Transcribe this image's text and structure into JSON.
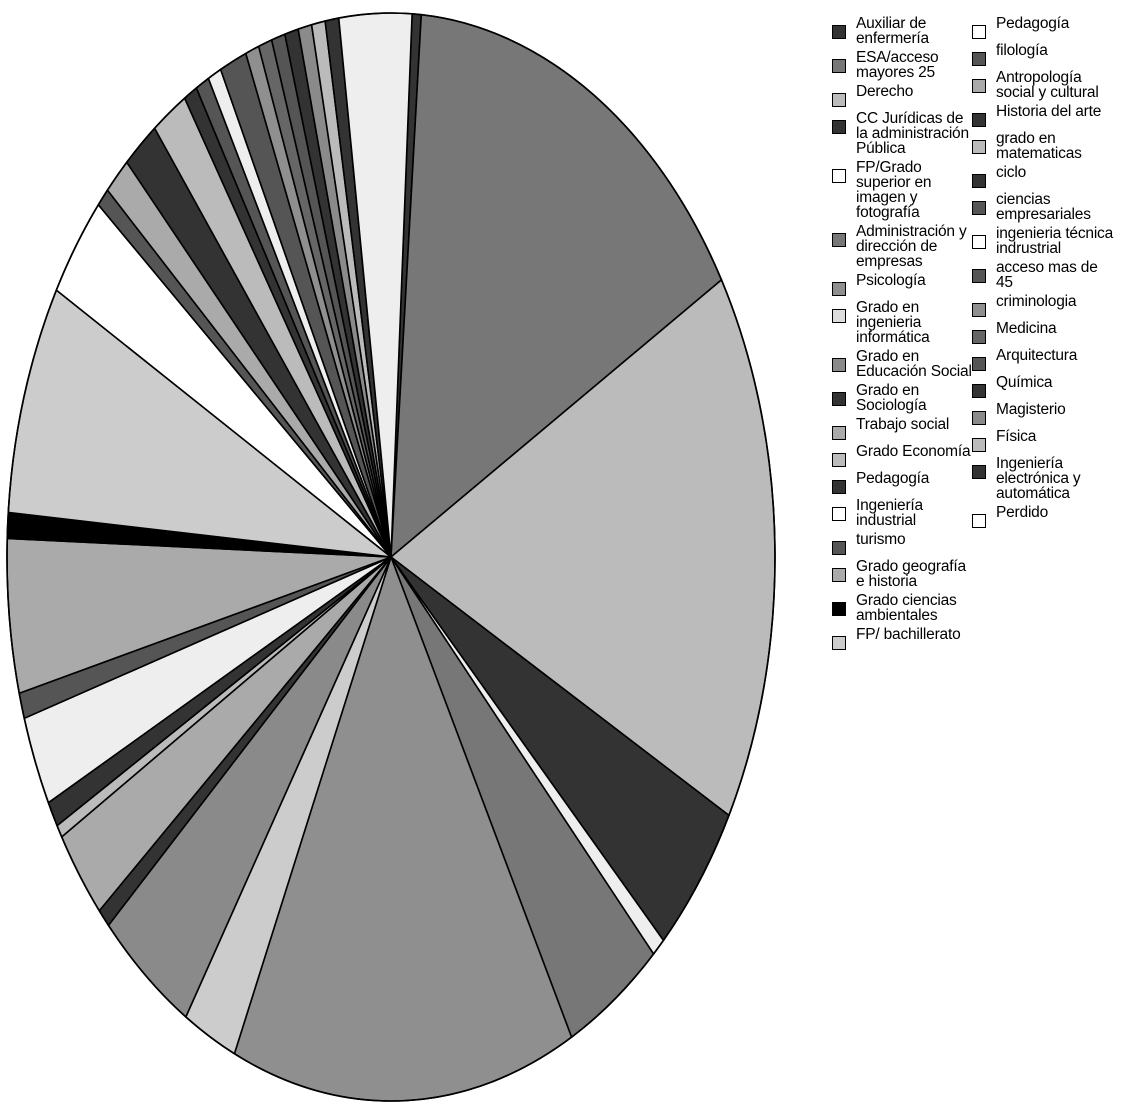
{
  "chart_data": {
    "type": "pie",
    "title": "",
    "legend_position": "right",
    "slices": [
      {
        "label": "Auxiliar de enfermería",
        "value": 1,
        "color": "#333333"
      },
      {
        "label": "ESA/acceso mayores 25",
        "value": 40,
        "color": "#777777"
      },
      {
        "label": "Derecho",
        "value": 43,
        "color": "#bbbbbb"
      },
      {
        "label": "CC Jurídicas de la administración Pública",
        "value": 12,
        "color": "#333333"
      },
      {
        "label": "FP/Grado superior en imagen y fotografía",
        "value": 1.5,
        "color": "#eeeeee"
      },
      {
        "label": "Administración y dirección de empresas",
        "value": 11,
        "color": "#777777"
      },
      {
        "label": "Psicología",
        "value": 38,
        "color": "#8f8f8f"
      },
      {
        "label": "Grado en ingenieria informática",
        "value": 6,
        "color": "#cccccc"
      },
      {
        "label": "Grado en Educación Social",
        "value": 11,
        "color": "#8a8a8a"
      },
      {
        "label": "Grado en Sociología",
        "value": 1.5,
        "color": "#333333"
      },
      {
        "label": "Trabajo social",
        "value": 7,
        "color": "#aaaaaa"
      },
      {
        "label": "Grado Economía",
        "value": 1,
        "color": "#bbbbbb"
      },
      {
        "label": "Pedagogía",
        "value": 2,
        "color": "#333333"
      },
      {
        "label": "Ingeniería industrial",
        "value": 7,
        "color": "#eeeeee"
      },
      {
        "label": "turismo",
        "value": 2,
        "color": "#555555"
      },
      {
        "label": "Grado geografía e historia",
        "value": 12,
        "color": "#aaaaaa"
      },
      {
        "label": "Grado ciencias ambientales",
        "value": 2,
        "color": "#000000"
      },
      {
        "label": "FP/ bachillerato",
        "value": 18,
        "color": "#cccccc"
      },
      {
        "label": "Pedagogía",
        "value": 8,
        "color": "#ffffff"
      },
      {
        "label": "filología",
        "value": 1.5,
        "color": "#555555"
      },
      {
        "label": "Antropología social y cultural",
        "value": 3,
        "color": "#aaaaaa"
      },
      {
        "label": "Historia del arte",
        "value": 4,
        "color": "#333333"
      },
      {
        "label": "grado en matematicas",
        "value": 4,
        "color": "#bbbbbb"
      },
      {
        "label": "ciclo",
        "value": 1.5,
        "color": "#333333"
      },
      {
        "label": "ciencias empresariales",
        "value": 1.5,
        "color": "#555555"
      },
      {
        "label": "ingenieria técnica indrustrial",
        "value": 1.5,
        "color": "#eeeeee"
      },
      {
        "label": "acceso mas de 45",
        "value": 3,
        "color": "#555555"
      },
      {
        "label": "criminologia",
        "value": 1.5,
        "color": "#8f8f8f"
      },
      {
        "label": "Medicina",
        "value": 1.5,
        "color": "#666666"
      },
      {
        "label": "Arquitectura",
        "value": 1.5,
        "color": "#555555"
      },
      {
        "label": "Química",
        "value": 1.5,
        "color": "#333333"
      },
      {
        "label": "Magisterio",
        "value": 1.5,
        "color": "#8a8a8a"
      },
      {
        "label": "Física",
        "value": 1.5,
        "color": "#bbbbbb"
      },
      {
        "label": "Ingeniería electrónica y automática",
        "value": 1.5,
        "color": "#333333"
      },
      {
        "label": "Perdido",
        "value": 8,
        "color": "#eeeeee"
      }
    ]
  },
  "legend": {
    "column1": [
      {
        "text": "Auxiliar de\nenfermería",
        "color": "#333333"
      },
      {
        "text": "ESA/acceso\nmayores 25",
        "color": "#777777"
      },
      {
        "text": "Derecho",
        "color": "#bbbbbb"
      },
      {
        "text": "CC Jurídicas de\nla administración\nPública",
        "color": "#333333"
      },
      {
        "text": "FP/Grado\nsuperior en\nimagen y\nfotografía",
        "color": "#ffffff"
      },
      {
        "text": "Administración y\ndirección de\nempresas",
        "color": "#777777"
      },
      {
        "text": "Psicología",
        "color": "#8f8f8f"
      },
      {
        "text": "Grado en\ningenieria\ninformática",
        "color": "#dddddd"
      },
      {
        "text": "Grado en\nEducación Social",
        "color": "#8a8a8a"
      },
      {
        "text": "Grado en\nSociología",
        "color": "#333333"
      },
      {
        "text": "Trabajo social",
        "color": "#aaaaaa"
      },
      {
        "text": "Grado Economía",
        "color": "#bbbbbb"
      },
      {
        "text": "Pedagogía",
        "color": "#333333"
      },
      {
        "text": "Ingeniería\nindustrial",
        "color": "#ffffff"
      },
      {
        "text": "turismo",
        "color": "#555555"
      },
      {
        "text": "Grado geografía\ne historia",
        "color": "#aaaaaa"
      },
      {
        "text": "Grado ciencias\nambientales",
        "color": "#000000"
      },
      {
        "text": "FP/ bachillerato",
        "color": "#cccccc"
      }
    ],
    "column2": [
      {
        "text": "Pedagogía",
        "color": "#ffffff"
      },
      {
        "text": "filología",
        "color": "#555555"
      },
      {
        "text": "Antropología\nsocial y cultural",
        "color": "#aaaaaa"
      },
      {
        "text": "Historia del arte",
        "color": "#333333"
      },
      {
        "text": "grado en\nmatematicas",
        "color": "#bbbbbb"
      },
      {
        "text": "ciclo",
        "color": "#333333"
      },
      {
        "text": "ciencias\nempresariales",
        "color": "#555555"
      },
      {
        "text": "ingenieria técnica\nindrustrial",
        "color": "#ffffff"
      },
      {
        "text": "acceso mas de\n45",
        "color": "#555555"
      },
      {
        "text": "criminologia",
        "color": "#8f8f8f"
      },
      {
        "text": "Medicina",
        "color": "#666666"
      },
      {
        "text": "Arquitectura",
        "color": "#555555"
      },
      {
        "text": "Química",
        "color": "#333333"
      },
      {
        "text": "Magisterio",
        "color": "#8a8a8a"
      },
      {
        "text": "Física",
        "color": "#bbbbbb"
      },
      {
        "text": "Ingeniería\nelectrónica y\nautomática",
        "color": "#333333"
      },
      {
        "text": "Perdido",
        "color": "#ffffff"
      }
    ]
  }
}
